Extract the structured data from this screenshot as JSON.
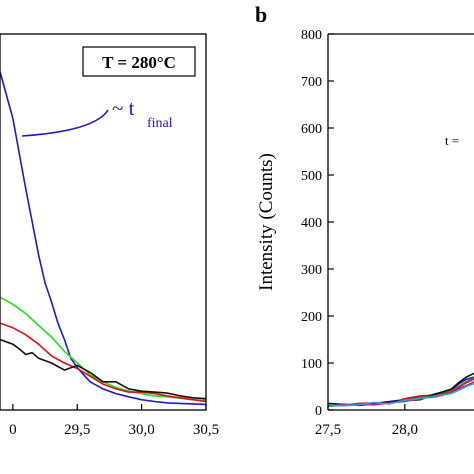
{
  "chart_data": [
    {
      "panel": "a",
      "type": "line",
      "annotation_box": "T = 280°C",
      "annotation_label": "~ t",
      "annotation_label_sub": "final",
      "xlim": [
        28.9,
        30.5
      ],
      "ylim": [
        0,
        800
      ],
      "x_ticks": [
        "0",
        "29,5",
        "30,0",
        "30,5"
      ],
      "x_tick_values": [
        29.0,
        29.5,
        30.0,
        30.5
      ],
      "series": [
        {
          "color": "#1a1ad0",
          "x": [
            28.9,
            29.0,
            29.1,
            29.2,
            29.25,
            29.3,
            29.35,
            29.4,
            29.45,
            29.5,
            29.6,
            29.7,
            29.8,
            29.9,
            30.0,
            30.1,
            30.2,
            30.3,
            30.4,
            30.5
          ],
          "y": [
            720,
            620,
            470,
            330,
            270,
            230,
            185,
            150,
            110,
            90,
            60,
            45,
            35,
            28,
            22,
            18,
            15,
            14,
            13,
            12
          ]
        },
        {
          "color": "#22dd22",
          "x": [
            28.9,
            29.0,
            29.1,
            29.2,
            29.3,
            29.4,
            29.5,
            29.6,
            29.7,
            29.8,
            29.9,
            30.0,
            30.1,
            30.2,
            30.3,
            30.4,
            30.5
          ],
          "y": [
            240,
            225,
            205,
            180,
            155,
            125,
            100,
            75,
            60,
            48,
            40,
            35,
            30,
            28,
            25,
            22,
            20
          ]
        },
        {
          "color": "#dd1111",
          "x": [
            28.9,
            29.0,
            29.1,
            29.2,
            29.3,
            29.4,
            29.5,
            29.6,
            29.7,
            29.8,
            29.9,
            30.0,
            30.1,
            30.2,
            30.3,
            30.4,
            30.5
          ],
          "y": [
            185,
            175,
            160,
            140,
            115,
            100,
            88,
            72,
            55,
            45,
            38,
            38,
            35,
            30,
            26,
            22,
            18
          ]
        },
        {
          "color": "#111111",
          "x": [
            28.9,
            29.0,
            29.05,
            29.1,
            29.15,
            29.2,
            29.3,
            29.4,
            29.5,
            29.6,
            29.7,
            29.8,
            29.9,
            30.0,
            30.1,
            30.2,
            30.3,
            30.4,
            30.5
          ],
          "y": [
            150,
            140,
            130,
            118,
            122,
            110,
            100,
            85,
            95,
            80,
            60,
            60,
            45,
            40,
            38,
            36,
            30,
            26,
            24
          ]
        }
      ]
    },
    {
      "panel": "b",
      "panel_label": "b",
      "type": "line",
      "ylabel": "Intensity (Counts)",
      "annotation_label": "t =",
      "xlim": [
        27.5,
        28.45
      ],
      "ylim": [
        0,
        800
      ],
      "x_ticks": [
        "27,5",
        "28,0"
      ],
      "x_tick_values": [
        27.5,
        28.0
      ],
      "y_ticks": [
        "0",
        "100",
        "200",
        "300",
        "400",
        "500",
        "600",
        "700",
        "800"
      ],
      "y_tick_values": [
        0,
        100,
        200,
        300,
        400,
        500,
        600,
        700,
        800
      ],
      "series": [
        {
          "color": "#1a1ad0",
          "x": [
            27.5,
            27.6,
            27.7,
            27.8,
            27.9,
            28.0,
            28.1,
            28.2,
            28.3,
            28.35,
            28.4,
            28.45
          ],
          "y": [
            10,
            12,
            10,
            14,
            18,
            22,
            28,
            30,
            42,
            55,
            65,
            70
          ]
        },
        {
          "color": "#22aa22",
          "x": [
            27.5,
            27.6,
            27.7,
            27.8,
            27.9,
            28.0,
            28.1,
            28.2,
            28.3,
            28.35,
            28.4,
            28.45
          ],
          "y": [
            8,
            10,
            12,
            12,
            16,
            20,
            26,
            35,
            40,
            50,
            60,
            68
          ]
        },
        {
          "color": "#dd1111",
          "x": [
            27.5,
            27.6,
            27.7,
            27.8,
            27.9,
            28.0,
            28.1,
            28.2,
            28.3,
            28.35,
            28.4,
            28.45
          ],
          "y": [
            12,
            10,
            14,
            15,
            14,
            24,
            30,
            32,
            38,
            48,
            58,
            66
          ]
        },
        {
          "color": "#111111",
          "x": [
            27.5,
            27.6,
            27.7,
            27.8,
            27.9,
            28.0,
            28.1,
            28.2,
            28.3,
            28.35,
            28.4,
            28.45
          ],
          "y": [
            14,
            12,
            10,
            13,
            17,
            20,
            22,
            34,
            44,
            58,
            70,
            78
          ]
        },
        {
          "color": "#aa22aa",
          "x": [
            27.5,
            27.6,
            27.7,
            27.8,
            27.9,
            28.0,
            28.1,
            28.2,
            28.3,
            28.35,
            28.4,
            28.45
          ],
          "y": [
            9,
            11,
            13,
            11,
            15,
            18,
            25,
            28,
            36,
            45,
            52,
            60
          ]
        },
        {
          "color": "#22aacc",
          "x": [
            27.5,
            27.6,
            27.7,
            27.8,
            27.9,
            28.0,
            28.1,
            28.2,
            28.3,
            28.35,
            28.4,
            28.45
          ],
          "y": [
            11,
            9,
            11,
            16,
            13,
            21,
            24,
            30,
            35,
            42,
            50,
            56
          ]
        }
      ]
    }
  ]
}
